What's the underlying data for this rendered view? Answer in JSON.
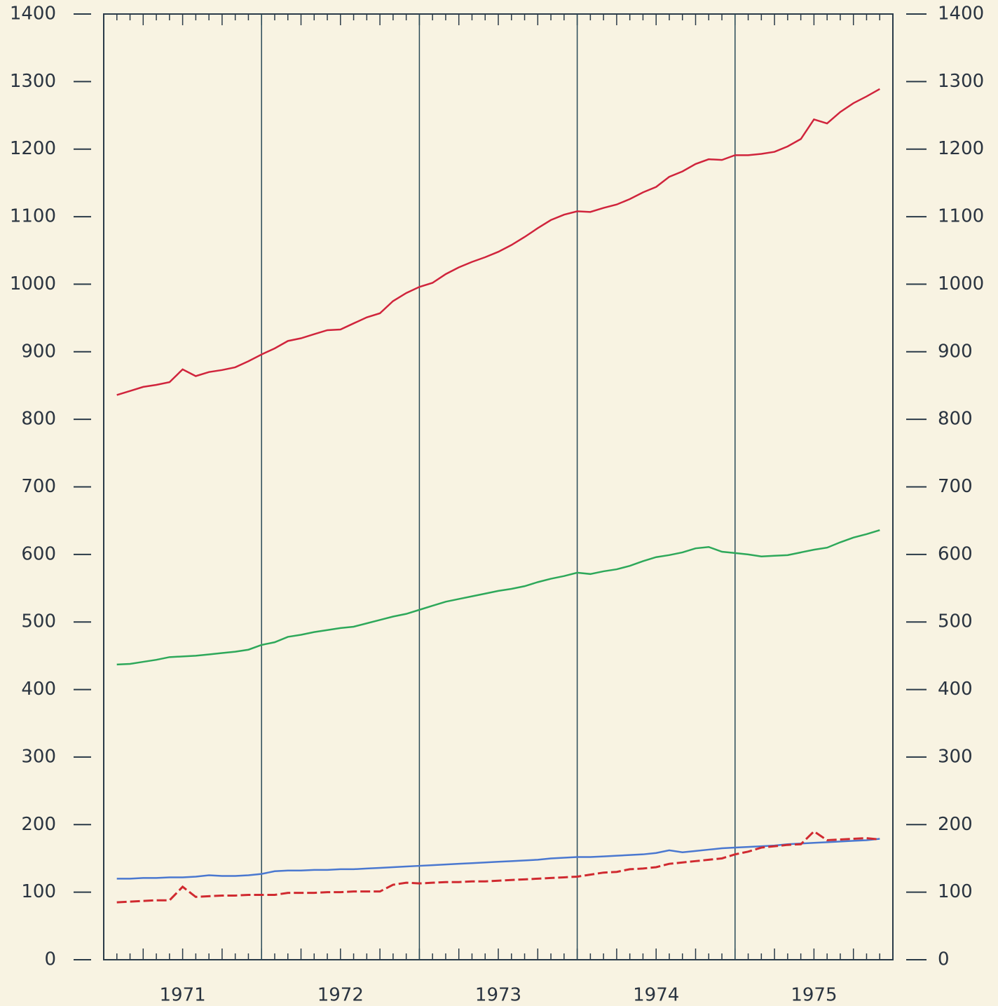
{
  "chart_data": {
    "type": "line",
    "x": [
      1971.083,
      1971.167,
      1971.25,
      1971.333,
      1971.417,
      1971.5,
      1971.583,
      1971.667,
      1971.75,
      1971.833,
      1971.917,
      1972,
      1972.083,
      1972.167,
      1972.25,
      1972.333,
      1972.417,
      1972.5,
      1972.583,
      1972.667,
      1972.75,
      1972.833,
      1972.917,
      1973,
      1973.083,
      1973.167,
      1973.25,
      1973.333,
      1973.417,
      1973.5,
      1973.583,
      1973.667,
      1973.75,
      1973.833,
      1973.917,
      1974,
      1974.083,
      1974.167,
      1974.25,
      1974.333,
      1974.417,
      1974.5,
      1974.583,
      1974.667,
      1974.75,
      1974.833,
      1974.917,
      1975,
      1975.083,
      1975.167,
      1975.25,
      1975.333,
      1975.417,
      1975.5,
      1975.583,
      1975.667,
      1975.75,
      1975.833,
      1975.917
    ],
    "series": [
      {
        "color": "#d0243c",
        "dash": false,
        "values": [
          836,
          842,
          848,
          851,
          855,
          874,
          864,
          870,
          873,
          877,
          886,
          896,
          905,
          916,
          920,
          926,
          932,
          933,
          942,
          951,
          957,
          975,
          987,
          996,
          1002,
          1015,
          1025,
          1033,
          1040,
          1048,
          1058,
          1070,
          1083,
          1095,
          1103,
          1108,
          1107,
          1113,
          1118,
          1126,
          1136,
          1144,
          1159,
          1167,
          1178,
          1185,
          1184,
          1191,
          1191,
          1193,
          1196,
          1204,
          1215,
          1244,
          1238,
          1255,
          1268,
          1278,
          1289
        ]
      },
      {
        "color": "#2ea85a",
        "dash": false,
        "values": [
          437,
          438,
          441,
          444,
          448,
          449,
          450,
          452,
          454,
          456,
          459,
          466,
          470,
          478,
          481,
          485,
          488,
          491,
          493,
          498,
          503,
          508,
          512,
          518,
          524,
          530,
          534,
          538,
          542,
          546,
          549,
          553,
          559,
          564,
          568,
          573,
          571,
          575,
          578,
          583,
          590,
          596,
          599,
          603,
          609,
          611,
          604,
          602,
          600,
          597,
          598,
          599,
          603,
          607,
          610,
          618,
          625,
          630,
          636
        ]
      },
      {
        "color": "#4a78d0",
        "dash": false,
        "values": [
          120,
          120,
          121,
          121,
          122,
          122,
          123,
          125,
          124,
          124,
          125,
          127,
          131,
          132,
          132,
          133,
          133,
          134,
          134,
          135,
          136,
          137,
          138,
          139,
          140,
          141,
          142,
          143,
          144,
          145,
          146,
          147,
          148,
          150,
          151,
          152,
          152,
          153,
          154,
          155,
          156,
          158,
          162,
          159,
          161,
          163,
          165,
          166,
          167,
          168,
          169,
          171,
          172,
          173,
          174,
          175,
          176,
          177,
          179
        ]
      },
      {
        "color": "#d02a30",
        "dash": true,
        "values": [
          85,
          86,
          87,
          88,
          88,
          108,
          93,
          94,
          95,
          95,
          96,
          96,
          96,
          99,
          99,
          99,
          100,
          100,
          101,
          101,
          101,
          111,
          114,
          113,
          114,
          115,
          115,
          116,
          116,
          117,
          118,
          119,
          120,
          121,
          122,
          123,
          126,
          129,
          130,
          134,
          135,
          137,
          142,
          144,
          146,
          148,
          150,
          156,
          160,
          166,
          168,
          170,
          171,
          190,
          177,
          178,
          179,
          180,
          178
        ]
      }
    ],
    "xlim": [
      1971,
      1976
    ],
    "xticks": [
      {
        "value": 1971.5,
        "label": "1971"
      },
      {
        "value": 1972.5,
        "label": "1972"
      },
      {
        "value": 1973.5,
        "label": "1973"
      },
      {
        "value": 1974.5,
        "label": "1974"
      },
      {
        "value": 1975.5,
        "label": "1975"
      }
    ],
    "xgrid": [
      1972,
      1973,
      1974,
      1975
    ],
    "ylim": [
      0,
      1400
    ],
    "yticks": [
      0,
      100,
      200,
      300,
      400,
      500,
      600,
      700,
      800,
      900,
      1000,
      1100,
      1200,
      1300,
      1400
    ],
    "right_axis": true
  }
}
